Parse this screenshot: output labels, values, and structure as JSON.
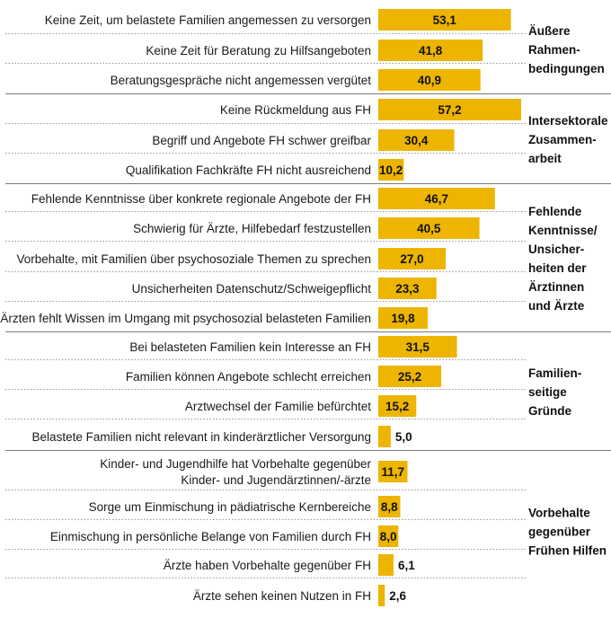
{
  "colors": {
    "bar": "#EDB500",
    "sep_solid": "#7a7a7a",
    "sep_dashed": "#9a9a9a",
    "text": "#1a1a1a"
  },
  "chart_data": {
    "type": "bar",
    "orientation": "horizontal",
    "title": "",
    "xlabel": "",
    "ylabel": "",
    "xlim": [
      0,
      57.2
    ],
    "groups": [
      {
        "label_lines": [
          "Äußere",
          "Rahmen-",
          "bedingungen"
        ],
        "items": [
          {
            "label_lines": [
              "Keine Zeit, um belastete Familien angemessen zu versorgen"
            ],
            "value": 53.1,
            "value_label": "53,1"
          },
          {
            "label_lines": [
              "Keine Zeit für Beratung zu Hilfsangeboten"
            ],
            "value": 41.8,
            "value_label": "41,8"
          },
          {
            "label_lines": [
              "Beratungsgespräche nicht angemessen vergütet"
            ],
            "value": 40.9,
            "value_label": "40,9"
          }
        ]
      },
      {
        "label_lines": [
          "Intersektorale",
          "Zusammen-",
          "arbeit"
        ],
        "items": [
          {
            "label_lines": [
              "Keine Rückmeldung aus FH"
            ],
            "value": 57.2,
            "value_label": "57,2"
          },
          {
            "label_lines": [
              "Begriff und Angebote FH schwer greifbar"
            ],
            "value": 30.4,
            "value_label": "30,4"
          },
          {
            "label_lines": [
              "Qualifikation Fachkräfte FH nicht ausreichend"
            ],
            "value": 10.2,
            "value_label": "10,2"
          }
        ]
      },
      {
        "label_lines": [
          "Fehlende",
          "Kenntnisse/",
          "Unsicher-",
          "heiten der",
          "Ärztinnen",
          "und Ärzte"
        ],
        "items": [
          {
            "label_lines": [
              "Fehlende Kenntnisse über konkrete regionale Angebote der FH"
            ],
            "value": 46.7,
            "value_label": "46,7"
          },
          {
            "label_lines": [
              "Schwierig für Ärzte, Hilfebedarf festzustellen"
            ],
            "value": 40.5,
            "value_label": "40,5"
          },
          {
            "label_lines": [
              "Vorbehalte, mit Familien über psychosoziale Themen zu sprechen"
            ],
            "value": 27.0,
            "value_label": "27,0"
          },
          {
            "label_lines": [
              "Unsicherheiten Datenschutz/Schweigepflicht"
            ],
            "value": 23.3,
            "value_label": "23,3"
          },
          {
            "label_lines": [
              "Ärzten fehlt Wissen im Umgang mit psychosozial belasteten Familien"
            ],
            "value": 19.8,
            "value_label": "19,8"
          }
        ]
      },
      {
        "label_lines": [
          "Familien-",
          "seitige",
          "Gründe"
        ],
        "items": [
          {
            "label_lines": [
              "Bei belasteten Familien kein Interesse an FH"
            ],
            "value": 31.5,
            "value_label": "31,5"
          },
          {
            "label_lines": [
              "Familien können Angebote schlecht erreichen"
            ],
            "value": 25.2,
            "value_label": "25,2"
          },
          {
            "label_lines": [
              "Arztwechsel der Familie befürchtet"
            ],
            "value": 15.2,
            "value_label": "15,2"
          },
          {
            "label_lines": [
              "Belastete Familien nicht relevant in kinderärztlicher Versorgung"
            ],
            "value": 5.0,
            "value_label": "5,0"
          }
        ]
      },
      {
        "label_lines": [
          "Vorbehalte",
          "gegenüber",
          "Frühen Hilfen"
        ],
        "items": [
          {
            "label_lines": [
              "Kinder- und Jugendhilfe hat Vorbehalte gegenüber",
              "Kinder- und Jugendärztinnen/-ärzte"
            ],
            "value": 11.7,
            "value_label": "11,7"
          },
          {
            "label_lines": [
              "Sorge um Einmischung in pädiatrische Kernbereiche"
            ],
            "value": 8.8,
            "value_label": "8,8"
          },
          {
            "label_lines": [
              "Einmischung in persönliche Belange von Familien durch FH"
            ],
            "value": 8.0,
            "value_label": "8,0"
          },
          {
            "label_lines": [
              "Ärzte haben Vorbehalte gegenüber FH"
            ],
            "value": 6.1,
            "value_label": "6,1"
          },
          {
            "label_lines": [
              "Ärzte sehen keinen Nutzen in FH"
            ],
            "value": 2.6,
            "value_label": "2,6"
          }
        ]
      }
    ]
  }
}
